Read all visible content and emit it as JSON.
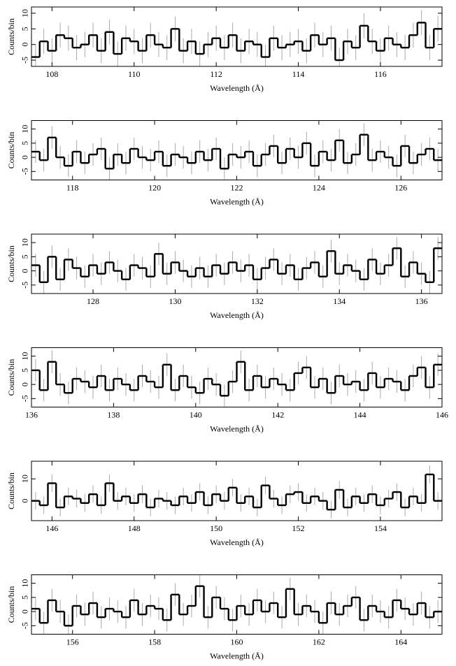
{
  "chart_data": [
    {
      "type": "histogram",
      "xlabel": "Wavelength (Å)",
      "ylabel": "Counts/bin",
      "error": 4,
      "bins": [
        107.5,
        107.7,
        107.9,
        108.1,
        108.3,
        108.5,
        108.7,
        108.9,
        109.1,
        109.3,
        109.5,
        109.7,
        109.9,
        110.1,
        110.3,
        110.5,
        110.7,
        110.9,
        111.1,
        111.3,
        111.5,
        111.7,
        111.9,
        112.1,
        112.3,
        112.5,
        112.7,
        112.9,
        113.1,
        113.3,
        113.5,
        113.7,
        113.9,
        114.1,
        114.3,
        114.5,
        114.7,
        114.9,
        115.1,
        115.3,
        115.5,
        115.7,
        115.9,
        116.1,
        116.3,
        116.5,
        116.7,
        116.9,
        117.1,
        117.3,
        117.5
      ],
      "values": [
        -4,
        1,
        -2,
        3,
        2,
        -1,
        0,
        3,
        -2,
        4,
        -3,
        2,
        1,
        -2,
        3,
        0,
        -1,
        5,
        -2,
        1,
        -3,
        0,
        2,
        -1,
        3,
        -2,
        1,
        0,
        -4,
        2,
        -1,
        0,
        1,
        -2,
        3,
        0,
        2,
        -5,
        1,
        -1,
        6,
        1,
        -2,
        2,
        0,
        -1,
        3,
        7,
        -1,
        5
      ],
      "xlim": [
        107.5,
        117.5
      ],
      "xticks": [
        108,
        110,
        112,
        114,
        116
      ],
      "ylim": [
        -7,
        12
      ],
      "yticks": [
        -5,
        0,
        5,
        10
      ],
      "color": "#000000"
    },
    {
      "type": "histogram",
      "xlabel": "Wavelength (Å)",
      "ylabel": "Counts/bin",
      "error": 4,
      "bins": [
        117,
        117.2,
        117.4,
        117.6,
        117.8,
        118,
        118.2,
        118.4,
        118.6,
        118.8,
        119,
        119.2,
        119.4,
        119.6,
        119.8,
        120,
        120.2,
        120.4,
        120.6,
        120.8,
        121,
        121.2,
        121.4,
        121.6,
        121.8,
        122,
        122.2,
        122.4,
        122.6,
        122.8,
        123,
        123.2,
        123.4,
        123.6,
        123.8,
        124,
        124.2,
        124.4,
        124.6,
        124.8,
        125,
        125.2,
        125.4,
        125.6,
        125.8,
        126,
        126.2,
        126.4,
        126.6,
        126.8,
        127
      ],
      "values": [
        2,
        -1,
        7,
        0,
        -3,
        2,
        -2,
        1,
        3,
        -4,
        1,
        -2,
        3,
        0,
        -1,
        2,
        -3,
        1,
        0,
        -2,
        2,
        -1,
        3,
        -4,
        1,
        0,
        2,
        -3,
        1,
        4,
        -2,
        3,
        0,
        5,
        -3,
        2,
        -1,
        6,
        -2,
        1,
        8,
        -1,
        2,
        0,
        -3,
        4,
        -2,
        1,
        3,
        -1
      ],
      "xlim": [
        117,
        127
      ],
      "xticks": [
        118,
        120,
        122,
        124,
        126
      ],
      "ylim": [
        -8,
        13
      ],
      "yticks": [
        -5,
        0,
        5,
        10
      ],
      "color": "#000000"
    },
    {
      "type": "histogram",
      "xlabel": "Wavelength (Å)",
      "ylabel": "Counts/bin",
      "error": 4,
      "bins": [
        126.5,
        126.7,
        126.9,
        127.1,
        127.3,
        127.5,
        127.7,
        127.9,
        128.1,
        128.3,
        128.5,
        128.7,
        128.9,
        129.1,
        129.3,
        129.5,
        129.7,
        129.9,
        130.1,
        130.3,
        130.5,
        130.7,
        130.9,
        131.1,
        131.3,
        131.5,
        131.7,
        131.9,
        132.1,
        132.3,
        132.5,
        132.7,
        132.9,
        133.1,
        133.3,
        133.5,
        133.7,
        133.9,
        134.1,
        134.3,
        134.5,
        134.7,
        134.9,
        135.1,
        135.3,
        135.5,
        135.7,
        135.9,
        136.1,
        136.3,
        136.5
      ],
      "values": [
        2,
        -4,
        5,
        -3,
        4,
        1,
        -2,
        2,
        -1,
        3,
        0,
        -3,
        2,
        1,
        -2,
        6,
        -1,
        3,
        0,
        -2,
        1,
        -2,
        2,
        -1,
        3,
        0,
        2,
        -3,
        1,
        4,
        -1,
        2,
        -3,
        1,
        3,
        -2,
        7,
        -1,
        2,
        0,
        -3,
        4,
        -1,
        2,
        8,
        -2,
        3,
        -1,
        -4,
        8
      ],
      "xlim": [
        126.5,
        136.5
      ],
      "xticks": [
        128,
        130,
        132,
        134,
        136
      ],
      "ylim": [
        -8,
        13
      ],
      "yticks": [
        -5,
        0,
        5,
        10
      ],
      "color": "#000000"
    },
    {
      "type": "histogram",
      "xlabel": "Wavelength (Å)",
      "ylabel": "Counts/bin",
      "error": 4,
      "bins": [
        136,
        136.2,
        136.4,
        136.6,
        136.8,
        137,
        137.2,
        137.4,
        137.6,
        137.8,
        138,
        138.2,
        138.4,
        138.6,
        138.8,
        139,
        139.2,
        139.4,
        139.6,
        139.8,
        140,
        140.2,
        140.4,
        140.6,
        140.8,
        141,
        141.2,
        141.4,
        141.6,
        141.8,
        142,
        142.2,
        142.4,
        142.6,
        142.8,
        143,
        143.2,
        143.4,
        143.6,
        143.8,
        144,
        144.2,
        144.4,
        144.6,
        144.8,
        145,
        145.2,
        145.4,
        145.6,
        145.8,
        146
      ],
      "values": [
        5,
        -2,
        8,
        0,
        -3,
        2,
        1,
        -1,
        3,
        -2,
        2,
        0,
        -2,
        3,
        1,
        -1,
        7,
        -2,
        3,
        -1,
        -3,
        2,
        0,
        -4,
        1,
        8,
        -2,
        3,
        -1,
        2,
        0,
        -2,
        4,
        6,
        -1,
        2,
        -3,
        3,
        0,
        1,
        -2,
        4,
        -1,
        2,
        1,
        -2,
        3,
        6,
        -1,
        7
      ],
      "xlim": [
        136,
        146
      ],
      "xticks": [
        136,
        138,
        140,
        142,
        144,
        146
      ],
      "ylim": [
        -8,
        13
      ],
      "yticks": [
        -5,
        0,
        5,
        10
      ],
      "color": "#000000"
    },
    {
      "type": "histogram",
      "xlabel": "Wavelength (Å)",
      "ylabel": "Counts/bin",
      "error": 4,
      "bins": [
        145.5,
        145.7,
        145.9,
        146.1,
        146.3,
        146.5,
        146.7,
        146.9,
        147.1,
        147.3,
        147.5,
        147.7,
        147.9,
        148.1,
        148.3,
        148.5,
        148.7,
        148.9,
        149.1,
        149.3,
        149.5,
        149.7,
        149.9,
        150.1,
        150.3,
        150.5,
        150.7,
        150.9,
        151.1,
        151.3,
        151.5,
        151.7,
        151.9,
        152.1,
        152.3,
        152.5,
        152.7,
        152.9,
        153.1,
        153.3,
        153.5,
        153.7,
        153.9,
        154.1,
        154.3,
        154.5,
        154.7,
        154.9,
        155.1,
        155.3,
        155.5
      ],
      "values": [
        0,
        -2,
        8,
        -3,
        2,
        1,
        -1,
        3,
        -2,
        8,
        0,
        2,
        -1,
        3,
        -3,
        1,
        0,
        -2,
        2,
        -1,
        4,
        -2,
        3,
        0,
        6,
        -1,
        2,
        -3,
        7,
        1,
        -2,
        3,
        4,
        -1,
        2,
        0,
        -4,
        5,
        -3,
        2,
        -1,
        3,
        -2,
        1,
        4,
        -3,
        2,
        -1,
        12,
        0
      ],
      "xlim": [
        145.5,
        155.5
      ],
      "xticks": [
        146,
        148,
        150,
        152,
        154
      ],
      "ylim": [
        -9,
        18
      ],
      "yticks": [
        0,
        10
      ],
      "color": "#000000"
    },
    {
      "type": "histogram",
      "xlabel": "Wavelength (Å)",
      "ylabel": "Counts/bin",
      "error": 4,
      "bins": [
        155,
        155.2,
        155.4,
        155.6,
        155.8,
        156,
        156.2,
        156.4,
        156.6,
        156.8,
        157,
        157.2,
        157.4,
        157.6,
        157.8,
        158,
        158.2,
        158.4,
        158.6,
        158.8,
        159,
        159.2,
        159.4,
        159.6,
        159.8,
        160,
        160.2,
        160.4,
        160.6,
        160.8,
        161,
        161.2,
        161.4,
        161.6,
        161.8,
        162,
        162.2,
        162.4,
        162.6,
        162.8,
        163,
        163.2,
        163.4,
        163.6,
        163.8,
        164,
        164.2,
        164.4,
        164.6,
        164.8,
        165
      ],
      "values": [
        1,
        -4,
        4,
        0,
        -5,
        2,
        -1,
        3,
        -2,
        1,
        0,
        -2,
        4,
        -1,
        2,
        1,
        -3,
        6,
        -1,
        2,
        9,
        -2,
        5,
        1,
        -3,
        2,
        -1,
        4,
        0,
        3,
        -2,
        8,
        -1,
        2,
        0,
        -4,
        3,
        -1,
        2,
        5,
        -3,
        2,
        0,
        -2,
        4,
        1,
        -1,
        3,
        -2,
        0
      ],
      "xlim": [
        155,
        165
      ],
      "xticks": [
        156,
        158,
        160,
        162,
        164
      ],
      "ylim": [
        -8,
        13
      ],
      "yticks": [
        -5,
        0,
        5,
        10
      ],
      "color": "#000000"
    }
  ]
}
